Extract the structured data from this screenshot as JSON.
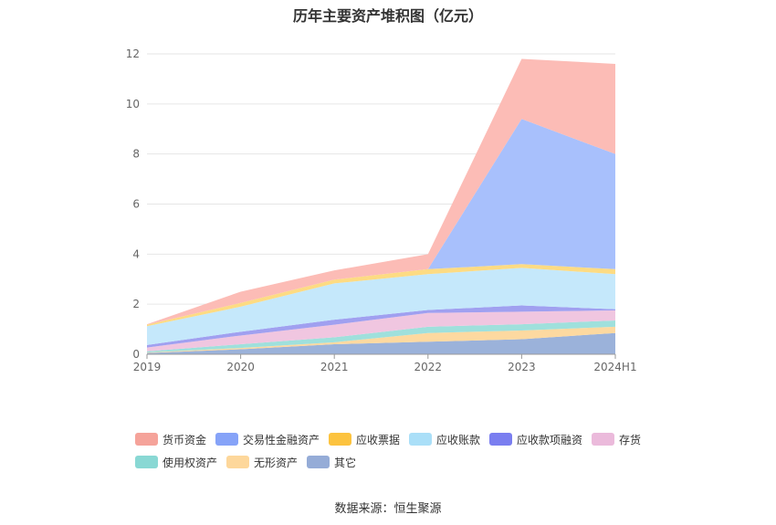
{
  "chart_data": {
    "type": "area",
    "stacked": true,
    "title": "历年主要资产堆积图（亿元）",
    "categories": [
      "2019",
      "2020",
      "2021",
      "2022",
      "2023",
      "2024H1"
    ],
    "ylim": [
      0,
      12
    ],
    "yticks": [
      0,
      2,
      4,
      6,
      8,
      10,
      12
    ],
    "grid": true,
    "legend_position": "bottom",
    "series": [
      {
        "name": "其它",
        "color": "#9bb2da",
        "values": [
          0.05,
          0.2,
          0.4,
          0.5,
          0.6,
          0.85
        ]
      },
      {
        "name": "无形资产",
        "color": "#fdd9a0",
        "values": [
          0.02,
          0.05,
          0.08,
          0.35,
          0.35,
          0.25
        ]
      },
      {
        "name": "使用权资产",
        "color": "#9fe0dc",
        "values": [
          0.05,
          0.15,
          0.2,
          0.25,
          0.25,
          0.25
        ]
      },
      {
        "name": "存货",
        "color": "#f0c6e0",
        "values": [
          0.15,
          0.35,
          0.5,
          0.55,
          0.5,
          0.4
        ]
      },
      {
        "name": "应收款项融资",
        "color": "#a0a0f0",
        "values": [
          0.1,
          0.15,
          0.2,
          0.12,
          0.25,
          0.05
        ]
      },
      {
        "name": "应收账款",
        "color": "#c5e8fb",
        "values": [
          0.75,
          1.0,
          1.45,
          1.43,
          1.5,
          1.4
        ]
      },
      {
        "name": "应收票据",
        "color": "#fddb83",
        "values": [
          0.06,
          0.15,
          0.15,
          0.2,
          0.15,
          0.2
        ]
      },
      {
        "name": "交易性金融资产",
        "color": "#a8c0fc",
        "values": [
          0,
          0,
          0,
          0,
          5.8,
          4.6
        ]
      },
      {
        "name": "货币资金",
        "color": "#fcbcb6",
        "values": [
          0.02,
          0.45,
          0.37,
          0.6,
          2.4,
          3.6
        ]
      }
    ]
  },
  "legend": [
    {
      "label": "货币资金",
      "color": "#f5a39a"
    },
    {
      "label": "交易性金融资产",
      "color": "#86a3f8"
    },
    {
      "label": "应收票据",
      "color": "#fcc33f"
    },
    {
      "label": "应收账款",
      "color": "#aadff8"
    },
    {
      "label": "应收款项融资",
      "color": "#7a7ef0"
    },
    {
      "label": "存货",
      "color": "#ebbadb"
    },
    {
      "label": "使用权资产",
      "color": "#89d8d4"
    },
    {
      "label": "无形资产",
      "color": "#fdd79b"
    },
    {
      "label": "其它",
      "color": "#95acd7"
    }
  ],
  "source": "数据来源：恒生聚源"
}
